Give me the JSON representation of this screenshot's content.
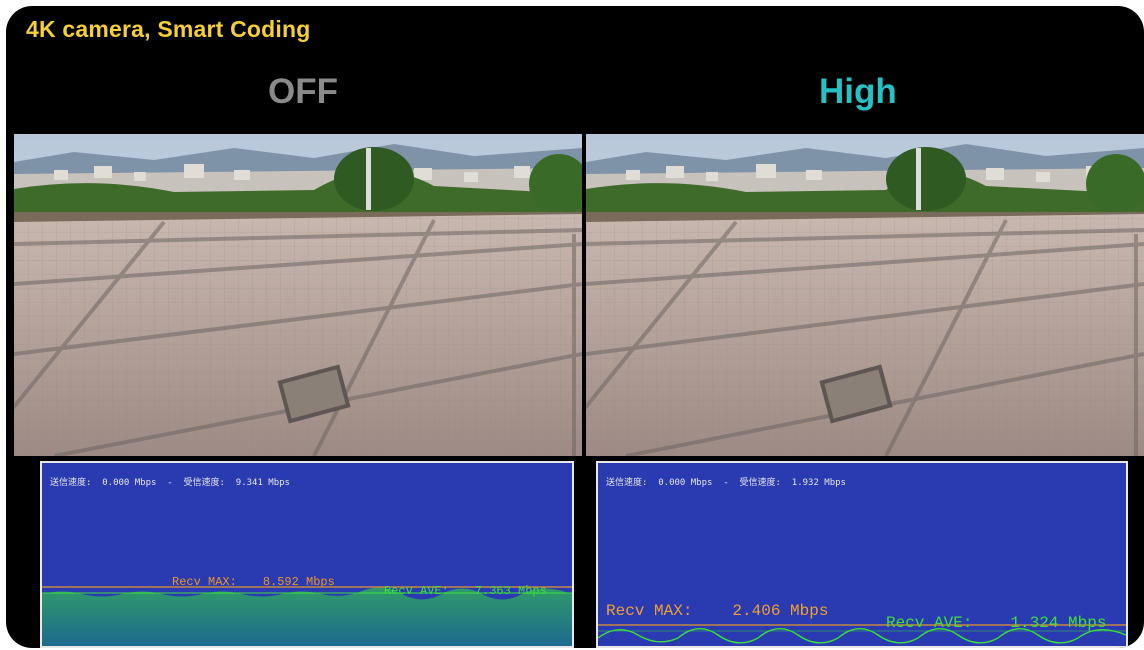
{
  "header": {
    "title": "4K camera, Smart Coding"
  },
  "panels": [
    {
      "label": "OFF",
      "rate_text": "送信速度:  0.000 Mbps  -  受信速度:  9.341 Mbps",
      "recv_max_label": "Recv MAX:",
      "recv_max_value": "8.592 Mbps",
      "recv_ave_label": "Recv AVE:",
      "recv_ave_value": "7.363 Mbps"
    },
    {
      "label": "High",
      "rate_text": "送信速度:  0.000 Mbps  -  受信速度:  1.932 Mbps",
      "recv_max_label": "Recv MAX:",
      "recv_max_value": "2.406 Mbps",
      "recv_ave_label": "Recv AVE:",
      "recv_ave_value": "1.324 Mbps"
    }
  ],
  "colors": {
    "title": "#f5cf38",
    "off_label": "#8a8a8a",
    "high_label": "#27c0c4",
    "graph_bg": "#2a3ab0",
    "recv_max": "#e8962a",
    "recv_ave": "#3de03a"
  }
}
